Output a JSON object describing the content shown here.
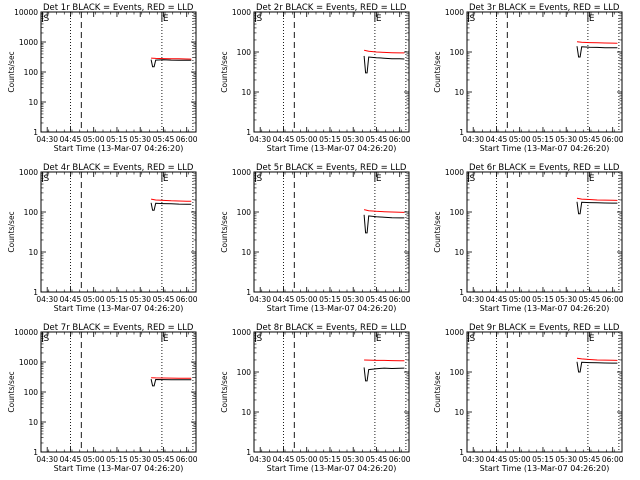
{
  "chart_data": [
    {
      "type": "line",
      "title": "Det 1r BLACK = Events, RED = LLD",
      "xlabel": "Start Time (13-Mar-07 04:26:20)",
      "ylabel": "Counts/sec",
      "yscale": "log",
      "ylim": [
        1,
        10000
      ],
      "yticks": [
        "1",
        "10",
        "100",
        "1000",
        "10000"
      ],
      "xlim": [
        "04:26",
        "06:06"
      ],
      "xticks": [
        "04:30",
        "04:45",
        "05:00",
        "05:15",
        "05:30",
        "05:45",
        "06:00"
      ],
      "grid": false,
      "legend": "in title",
      "markers": [
        {
          "label": "S",
          "time": "04:27",
          "style": "solid"
        },
        {
          "label": "",
          "time": "04:45",
          "style": "dotted"
        },
        {
          "label": "",
          "time": "04:52",
          "style": "dashed"
        },
        {
          "label": "E",
          "time": "05:44",
          "style": "solid"
        },
        {
          "label": "",
          "time": "05:44",
          "style": "dotted"
        },
        {
          "label": "",
          "time": "06:04",
          "style": "dotted"
        }
      ],
      "series": [
        {
          "color": "#ff0000",
          "x": [
            "05:37",
            "05:40",
            "05:45",
            "05:50",
            "05:55",
            "06:00",
            "06:03"
          ],
          "y": [
            290,
            285,
            280,
            278,
            275,
            272,
            270
          ]
        },
        {
          "color": "#000000",
          "x": [
            "05:37",
            "05:38",
            "05:39",
            "05:40",
            "05:45",
            "05:50",
            "05:55",
            "06:00",
            "06:03"
          ],
          "y": [
            260,
            150,
            150,
            250,
            255,
            250,
            248,
            245,
            245
          ]
        }
      ]
    },
    {
      "type": "line",
      "title": "Det 2r BLACK = Events, RED = LLD",
      "xlabel": "Start Time (13-Mar-07 04:26:20)",
      "ylabel": "Counts/sec",
      "yscale": "log",
      "ylim": [
        1,
        1000
      ],
      "yticks": [
        "1",
        "10",
        "100",
        "1000"
      ],
      "xlim": [
        "04:26",
        "06:06"
      ],
      "xticks": [
        "04:30",
        "04:45",
        "05:00",
        "05:15",
        "05:30",
        "05:45",
        "06:00"
      ],
      "grid": false,
      "legend": "in title",
      "markers": [
        {
          "label": "S",
          "time": "04:27",
          "style": "solid"
        },
        {
          "label": "",
          "time": "04:45",
          "style": "dotted"
        },
        {
          "label": "",
          "time": "04:52",
          "style": "dashed"
        },
        {
          "label": "E",
          "time": "05:44",
          "style": "solid"
        },
        {
          "label": "",
          "time": "05:44",
          "style": "dotted"
        },
        {
          "label": "",
          "time": "06:04",
          "style": "dotted"
        }
      ],
      "series": [
        {
          "color": "#ff0000",
          "x": [
            "05:37",
            "05:40",
            "05:45",
            "05:50",
            "05:55",
            "06:00",
            "06:03"
          ],
          "y": [
            110,
            105,
            100,
            98,
            96,
            95,
            95
          ]
        },
        {
          "color": "#000000",
          "x": [
            "05:37",
            "05:38",
            "05:39",
            "05:40",
            "05:45",
            "05:50",
            "05:55",
            "06:00",
            "06:03"
          ],
          "y": [
            80,
            30,
            30,
            75,
            72,
            70,
            68,
            68,
            67
          ]
        }
      ]
    },
    {
      "type": "line",
      "title": "Det 3r BLACK = Events, RED = LLD",
      "xlabel": "Start Time (13-Mar-07 04:26:20)",
      "ylabel": "Counts/sec",
      "yscale": "log",
      "ylim": [
        1,
        1000
      ],
      "yticks": [
        "1",
        "10",
        "100",
        "1000"
      ],
      "xlim": [
        "04:26",
        "06:06"
      ],
      "xticks": [
        "04:30",
        "04:45",
        "05:00",
        "05:15",
        "05:30",
        "05:45",
        "06:00"
      ],
      "grid": false,
      "legend": "in title",
      "markers": [
        {
          "label": "S",
          "time": "04:27",
          "style": "solid"
        },
        {
          "label": "",
          "time": "04:45",
          "style": "dotted"
        },
        {
          "label": "",
          "time": "04:52",
          "style": "dashed"
        },
        {
          "label": "E",
          "time": "05:44",
          "style": "solid"
        },
        {
          "label": "",
          "time": "05:44",
          "style": "dotted"
        },
        {
          "label": "",
          "time": "06:04",
          "style": "dotted"
        }
      ],
      "series": [
        {
          "color": "#ff0000",
          "x": [
            "05:37",
            "05:40",
            "05:45",
            "05:50",
            "05:55",
            "06:00",
            "06:03"
          ],
          "y": [
            180,
            175,
            172,
            170,
            168,
            167,
            166
          ]
        },
        {
          "color": "#000000",
          "x": [
            "05:37",
            "05:38",
            "05:39",
            "05:40",
            "05:45",
            "05:50",
            "05:55",
            "06:00",
            "06:03"
          ],
          "y": [
            140,
            75,
            75,
            135,
            132,
            130,
            128,
            127,
            127
          ]
        }
      ]
    },
    {
      "type": "line",
      "title": "Det 4r BLACK = Events, RED = LLD",
      "xlabel": "Start Time (13-Mar-07 04:26:20)",
      "ylabel": "Counts/sec",
      "yscale": "log",
      "ylim": [
        1,
        1000
      ],
      "yticks": [
        "1",
        "10",
        "100",
        "1000"
      ],
      "xlim": [
        "04:26",
        "06:06"
      ],
      "xticks": [
        "04:30",
        "04:45",
        "05:00",
        "05:15",
        "05:30",
        "05:45",
        "06:00"
      ],
      "grid": false,
      "legend": "in title",
      "markers": [
        {
          "label": "S",
          "time": "04:27",
          "style": "solid"
        },
        {
          "label": "",
          "time": "04:45",
          "style": "dotted"
        },
        {
          "label": "",
          "time": "04:52",
          "style": "dashed"
        },
        {
          "label": "E",
          "time": "05:44",
          "style": "solid"
        },
        {
          "label": "",
          "time": "05:44",
          "style": "dotted"
        },
        {
          "label": "",
          "time": "06:04",
          "style": "dotted"
        }
      ],
      "series": [
        {
          "color": "#ff0000",
          "x": [
            "05:37",
            "05:40",
            "05:45",
            "05:50",
            "05:55",
            "06:00",
            "06:03"
          ],
          "y": [
            210,
            200,
            195,
            190,
            188,
            186,
            185
          ]
        },
        {
          "color": "#000000",
          "x": [
            "05:37",
            "05:38",
            "05:39",
            "05:40",
            "05:45",
            "05:50",
            "05:55",
            "06:00",
            "06:03"
          ],
          "y": [
            170,
            110,
            110,
            165,
            162,
            160,
            158,
            157,
            157
          ]
        }
      ]
    },
    {
      "type": "line",
      "title": "Det 5r BLACK = Events, RED = LLD",
      "xlabel": "Start Time (13-Mar-07 04:26:20)",
      "ylabel": "Counts/sec",
      "yscale": "log",
      "ylim": [
        1,
        1000
      ],
      "yticks": [
        "1",
        "10",
        "100",
        "1000"
      ],
      "xlim": [
        "04:26",
        "06:06"
      ],
      "xticks": [
        "04:30",
        "04:45",
        "05:00",
        "05:15",
        "05:30",
        "05:45",
        "06:00"
      ],
      "grid": false,
      "legend": "in title",
      "markers": [
        {
          "label": "S",
          "time": "04:27",
          "style": "solid"
        },
        {
          "label": "",
          "time": "04:45",
          "style": "dotted"
        },
        {
          "label": "",
          "time": "04:52",
          "style": "dashed"
        },
        {
          "label": "E",
          "time": "05:44",
          "style": "solid"
        },
        {
          "label": "",
          "time": "05:44",
          "style": "dotted"
        },
        {
          "label": "",
          "time": "06:04",
          "style": "dotted"
        }
      ],
      "series": [
        {
          "color": "#ff0000",
          "x": [
            "05:37",
            "05:40",
            "05:45",
            "05:50",
            "05:55",
            "06:00",
            "06:03"
          ],
          "y": [
            115,
            108,
            104,
            102,
            100,
            99,
            98
          ]
        },
        {
          "color": "#000000",
          "x": [
            "05:37",
            "05:38",
            "05:39",
            "05:40",
            "05:45",
            "05:50",
            "05:55",
            "06:00",
            "06:03"
          ],
          "y": [
            85,
            30,
            30,
            80,
            76,
            74,
            72,
            71,
            71
          ]
        }
      ]
    },
    {
      "type": "line",
      "title": "Det 6r BLACK = Events, RED = LLD",
      "xlabel": "Start Time (13-Mar-07 04:26:20)",
      "ylabel": "Counts/sec",
      "yscale": "log",
      "ylim": [
        1,
        1000
      ],
      "yticks": [
        "1",
        "10",
        "100",
        "1000"
      ],
      "xlim": [
        "04:26",
        "06:06"
      ],
      "xticks": [
        "04:30",
        "04:45",
        "05:00",
        "05:15",
        "05:30",
        "05:45",
        "06:00"
      ],
      "grid": false,
      "legend": "in title",
      "markers": [
        {
          "label": "S",
          "time": "04:27",
          "style": "solid"
        },
        {
          "label": "",
          "time": "04:45",
          "style": "dotted"
        },
        {
          "label": "",
          "time": "04:52",
          "style": "dashed"
        },
        {
          "label": "E",
          "time": "05:44",
          "style": "solid"
        },
        {
          "label": "",
          "time": "05:44",
          "style": "dotted"
        },
        {
          "label": "",
          "time": "06:04",
          "style": "dotted"
        }
      ],
      "series": [
        {
          "color": "#ff0000",
          "x": [
            "05:37",
            "05:40",
            "05:45",
            "05:50",
            "05:55",
            "06:00",
            "06:03"
          ],
          "y": [
            220,
            210,
            205,
            200,
            198,
            196,
            195
          ]
        },
        {
          "color": "#000000",
          "x": [
            "05:37",
            "05:38",
            "05:39",
            "05:40",
            "05:45",
            "05:50",
            "05:55",
            "06:00",
            "06:03"
          ],
          "y": [
            180,
            90,
            90,
            175,
            172,
            170,
            168,
            167,
            167
          ]
        }
      ]
    },
    {
      "type": "line",
      "title": "Det 7r BLACK = Events, RED = LLD",
      "xlabel": "Start Time (13-Mar-07 04:26:20)",
      "ylabel": "Counts/sec",
      "yscale": "log",
      "ylim": [
        1,
        10000
      ],
      "yticks": [
        "1",
        "10",
        "100",
        "1000",
        "10000"
      ],
      "xlim": [
        "04:26",
        "06:06"
      ],
      "xticks": [
        "04:30",
        "04:45",
        "05:00",
        "05:15",
        "05:30",
        "05:45",
        "06:00"
      ],
      "grid": false,
      "legend": "in title",
      "markers": [
        {
          "label": "S",
          "time": "04:27",
          "style": "solid"
        },
        {
          "label": "",
          "time": "04:45",
          "style": "dotted"
        },
        {
          "label": "",
          "time": "04:52",
          "style": "dashed"
        },
        {
          "label": "E",
          "time": "05:44",
          "style": "solid"
        },
        {
          "label": "",
          "time": "05:44",
          "style": "dotted"
        },
        {
          "label": "",
          "time": "06:04",
          "style": "dotted"
        }
      ],
      "series": [
        {
          "color": "#ff0000",
          "x": [
            "05:37",
            "05:40",
            "05:45",
            "05:50",
            "05:55",
            "06:00",
            "06:03"
          ],
          "y": [
            300,
            295,
            292,
            290,
            288,
            287,
            286
          ]
        },
        {
          "color": "#000000",
          "x": [
            "05:37",
            "05:38",
            "05:39",
            "05:40",
            "05:45",
            "05:50",
            "05:55",
            "06:00",
            "06:03"
          ],
          "y": [
            270,
            160,
            160,
            262,
            260,
            258,
            256,
            255,
            255
          ]
        }
      ]
    },
    {
      "type": "line",
      "title": "Det 8r BLACK = Events, RED = LLD",
      "xlabel": "Start Time (13-Mar-07 04:26:20)",
      "ylabel": "Counts/sec",
      "yscale": "log",
      "ylim": [
        1,
        1000
      ],
      "yticks": [
        "1",
        "10",
        "100",
        "1000"
      ],
      "xlim": [
        "04:26",
        "06:06"
      ],
      "xticks": [
        "04:30",
        "04:45",
        "05:00",
        "05:15",
        "05:30",
        "05:45",
        "06:00"
      ],
      "grid": false,
      "legend": "in title",
      "markers": [
        {
          "label": "S",
          "time": "04:27",
          "style": "solid"
        },
        {
          "label": "",
          "time": "04:45",
          "style": "dotted"
        },
        {
          "label": "",
          "time": "04:52",
          "style": "dashed"
        },
        {
          "label": "E",
          "time": "05:44",
          "style": "solid"
        },
        {
          "label": "",
          "time": "05:44",
          "style": "dotted"
        },
        {
          "label": "",
          "time": "06:04",
          "style": "dotted"
        }
      ],
      "series": [
        {
          "color": "#ff0000",
          "x": [
            "05:37",
            "05:40",
            "05:45",
            "05:50",
            "05:55",
            "06:00",
            "06:03"
          ],
          "y": [
            200,
            198,
            195,
            195,
            193,
            192,
            190
          ]
        },
        {
          "color": "#000000",
          "x": [
            "05:37",
            "05:38",
            "05:39",
            "05:40",
            "05:45",
            "05:50",
            "05:55",
            "06:00",
            "06:03"
          ],
          "y": [
            130,
            60,
            60,
            115,
            120,
            125,
            122,
            124,
            125
          ]
        }
      ]
    },
    {
      "type": "line",
      "title": "Det 9r BLACK = Events, RED = LLD",
      "xlabel": "Start Time (13-Mar-07 04:26:20)",
      "ylabel": "Counts/sec",
      "yscale": "log",
      "ylim": [
        1,
        1000
      ],
      "yticks": [
        "1",
        "10",
        "100",
        "1000"
      ],
      "xlim": [
        "04:26",
        "06:06"
      ],
      "xticks": [
        "04:30",
        "04:45",
        "05:00",
        "05:15",
        "05:30",
        "05:45",
        "06:00"
      ],
      "grid": false,
      "legend": "in title",
      "markers": [
        {
          "label": "S",
          "time": "04:27",
          "style": "solid"
        },
        {
          "label": "",
          "time": "04:45",
          "style": "dotted"
        },
        {
          "label": "",
          "time": "04:52",
          "style": "dashed"
        },
        {
          "label": "E",
          "time": "05:44",
          "style": "solid"
        },
        {
          "label": "",
          "time": "05:44",
          "style": "dotted"
        },
        {
          "label": "",
          "time": "06:04",
          "style": "dotted"
        }
      ],
      "series": [
        {
          "color": "#ff0000",
          "x": [
            "05:37",
            "05:40",
            "05:45",
            "05:50",
            "05:55",
            "06:00",
            "06:03"
          ],
          "y": [
            220,
            212,
            205,
            200,
            198,
            196,
            195
          ]
        },
        {
          "color": "#000000",
          "x": [
            "05:37",
            "05:38",
            "05:39",
            "05:40",
            "05:45",
            "05:50",
            "05:55",
            "06:00",
            "06:03"
          ],
          "y": [
            180,
            100,
            100,
            175,
            172,
            170,
            168,
            167,
            167
          ]
        }
      ]
    }
  ]
}
